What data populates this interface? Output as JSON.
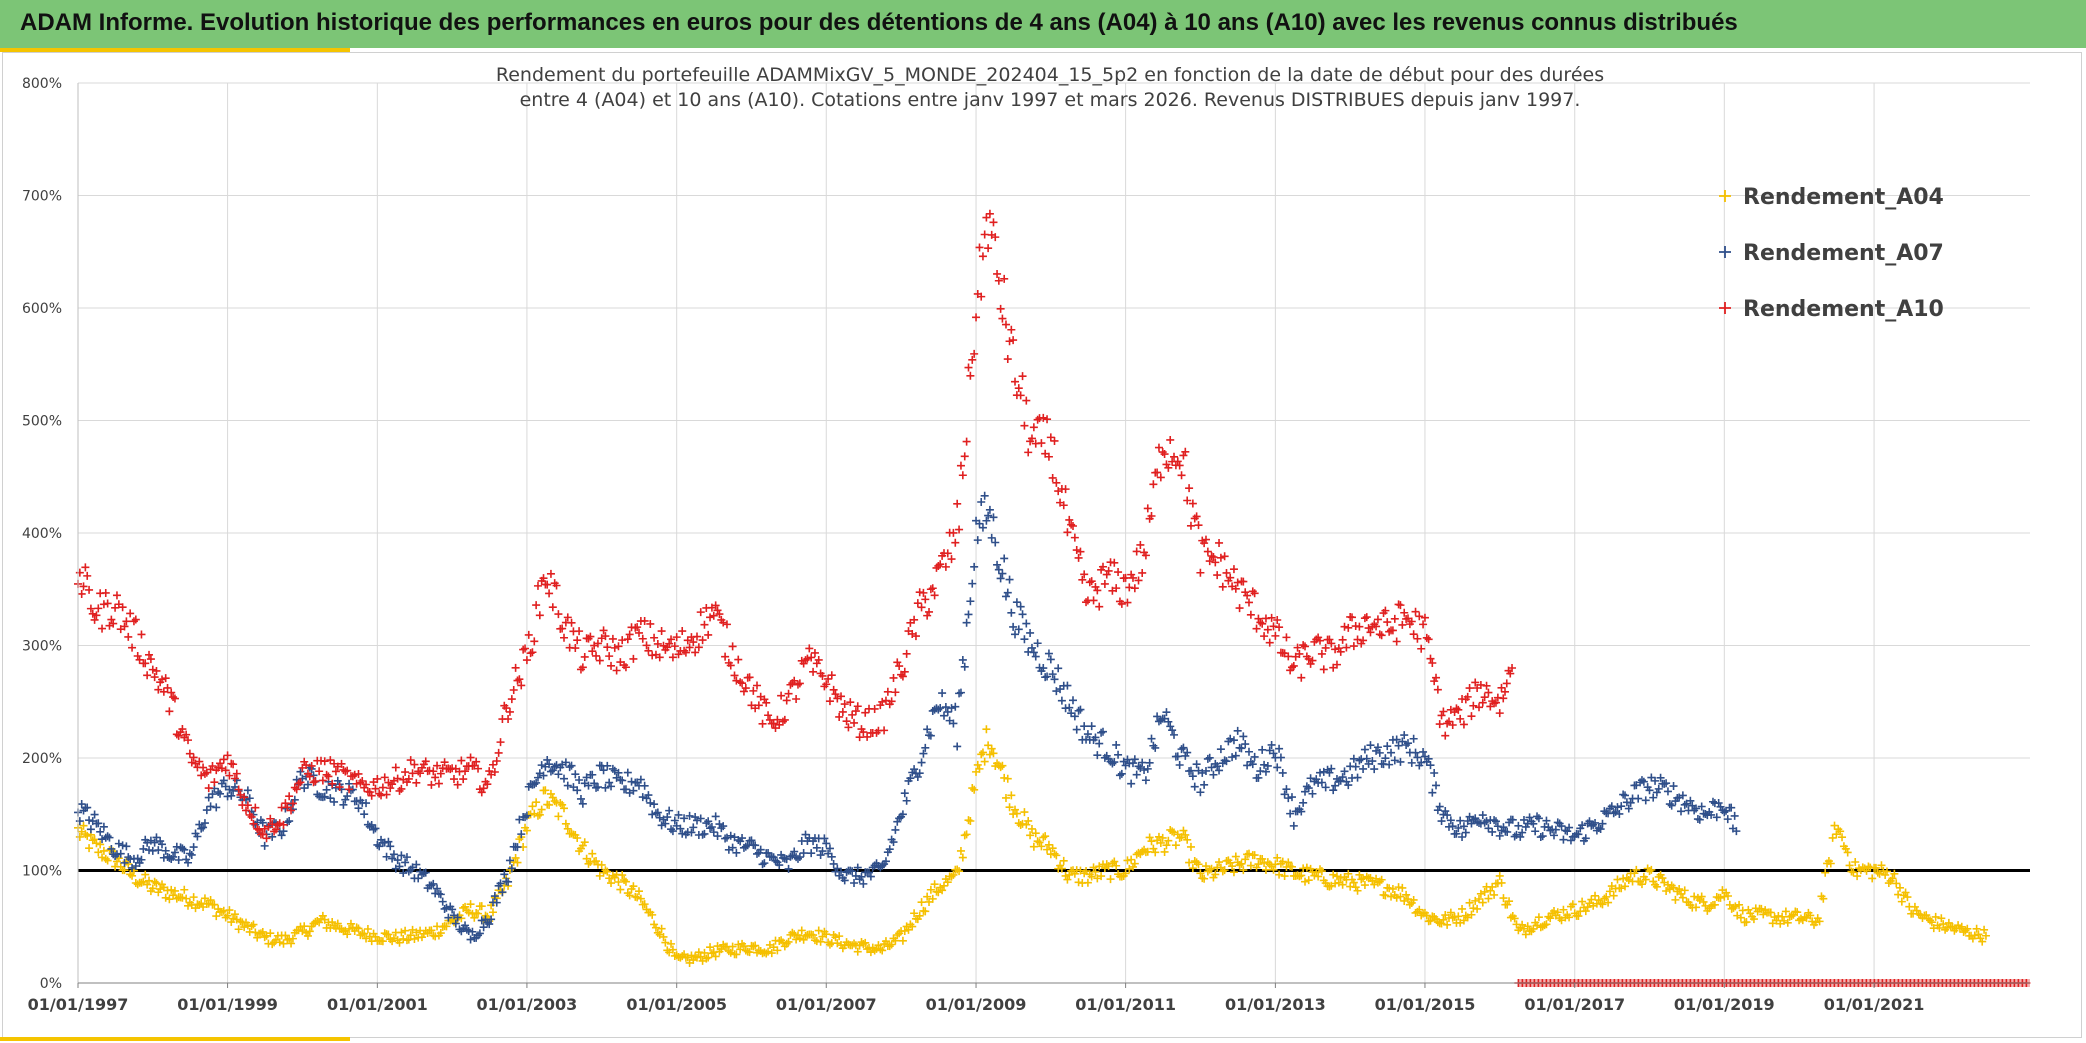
{
  "header": {
    "title": "ADAM Informe. Evolution historique des performances en euros pour des détentions de 4 ans (A04) à 10 ans (A10) avec les revenus connus distribués"
  },
  "chart_data": {
    "type": "scatter",
    "title": "",
    "subtitle_lines": [
      "Rendement du portefeuille ADAMMixGV_5_MONDE_202404_15_5p2  en fonction de la date de début pour des durées",
      "entre 4 (A04) et 10 ans (A10). Cotations entre janv 1997 et mars 2026. Revenus DISTRIBUES depuis janv 1997."
    ],
    "xlabel": "",
    "ylabel": "",
    "x_range": [
      "1997-01-01",
      "2023-02-01"
    ],
    "ylim": [
      0,
      800
    ],
    "y_ticks": [
      "0%",
      "100%",
      "200%",
      "300%",
      "400%",
      "500%",
      "600%",
      "700%",
      "800%"
    ],
    "x_ticks": [
      "01/01/1997",
      "01/01/1999",
      "01/01/2001",
      "01/01/2003",
      "01/01/2005",
      "01/01/2007",
      "01/01/2009",
      "01/01/2011",
      "01/01/2013",
      "01/01/2015",
      "01/01/2017",
      "01/01/2019",
      "01/01/2021"
    ],
    "reference_line": {
      "y": 100,
      "color": "#000000"
    },
    "grid": true,
    "legend_position": "top-right",
    "series": [
      {
        "name": "Rendement_A04",
        "color": "#f5c000",
        "marker": "+",
        "points": [
          [
            "1997-01-01",
            135
          ],
          [
            "1997-04-01",
            120
          ],
          [
            "1997-07-01",
            110
          ],
          [
            "1997-10-01",
            95
          ],
          [
            "1998-01-01",
            85
          ],
          [
            "1998-04-01",
            80
          ],
          [
            "1998-07-01",
            75
          ],
          [
            "1998-10-01",
            70
          ],
          [
            "1999-01-01",
            60
          ],
          [
            "1999-04-01",
            50
          ],
          [
            "1999-07-01",
            40
          ],
          [
            "1999-10-01",
            38
          ],
          [
            "2000-01-01",
            45
          ],
          [
            "2000-04-01",
            55
          ],
          [
            "2000-07-01",
            50
          ],
          [
            "2000-10-01",
            45
          ],
          [
            "2001-01-01",
            42
          ],
          [
            "2001-04-01",
            40
          ],
          [
            "2001-07-01",
            42
          ],
          [
            "2001-10-01",
            45
          ],
          [
            "2002-01-01",
            55
          ],
          [
            "2002-04-01",
            65
          ],
          [
            "2002-07-01",
            60
          ],
          [
            "2002-10-01",
            90
          ],
          [
            "2003-01-01",
            140
          ],
          [
            "2003-04-01",
            165
          ],
          [
            "2003-07-01",
            150
          ],
          [
            "2003-10-01",
            120
          ],
          [
            "2004-01-01",
            100
          ],
          [
            "2004-04-01",
            90
          ],
          [
            "2004-07-01",
            75
          ],
          [
            "2004-10-01",
            50
          ],
          [
            "2005-01-01",
            20
          ],
          [
            "2005-04-01",
            22
          ],
          [
            "2005-07-01",
            28
          ],
          [
            "2005-10-01",
            30
          ],
          [
            "2006-01-01",
            32
          ],
          [
            "2006-04-01",
            30
          ],
          [
            "2006-07-01",
            40
          ],
          [
            "2006-10-01",
            45
          ],
          [
            "2007-01-01",
            40
          ],
          [
            "2007-04-01",
            35
          ],
          [
            "2007-07-01",
            32
          ],
          [
            "2007-10-01",
            30
          ],
          [
            "2008-01-01",
            40
          ],
          [
            "2008-04-01",
            65
          ],
          [
            "2008-07-01",
            85
          ],
          [
            "2008-10-01",
            95
          ],
          [
            "2009-01-01",
            180
          ],
          [
            "2009-03-01",
            220
          ],
          [
            "2009-07-01",
            160
          ],
          [
            "2009-10-01",
            130
          ],
          [
            "2010-01-01",
            120
          ],
          [
            "2010-04-01",
            95
          ],
          [
            "2010-07-01",
            95
          ],
          [
            "2010-10-01",
            100
          ],
          [
            "2011-01-01",
            100
          ],
          [
            "2011-04-01",
            120
          ],
          [
            "2011-07-01",
            125
          ],
          [
            "2011-10-01",
            130
          ],
          [
            "2012-01-01",
            95
          ],
          [
            "2012-04-01",
            100
          ],
          [
            "2012-07-01",
            105
          ],
          [
            "2012-10-01",
            110
          ],
          [
            "2013-01-01",
            105
          ],
          [
            "2013-04-01",
            98
          ],
          [
            "2013-07-01",
            95
          ],
          [
            "2013-10-01",
            92
          ],
          [
            "2014-01-01",
            90
          ],
          [
            "2014-04-01",
            88
          ],
          [
            "2014-07-01",
            85
          ],
          [
            "2014-10-01",
            78
          ],
          [
            "2015-01-01",
            60
          ],
          [
            "2015-04-01",
            55
          ],
          [
            "2015-07-01",
            60
          ],
          [
            "2015-10-01",
            75
          ],
          [
            "2016-01-01",
            90
          ],
          [
            "2016-04-01",
            45
          ],
          [
            "2016-07-01",
            55
          ],
          [
            "2016-10-01",
            60
          ],
          [
            "2017-01-01",
            65
          ],
          [
            "2017-04-01",
            70
          ],
          [
            "2017-07-01",
            80
          ],
          [
            "2017-10-01",
            95
          ],
          [
            "2018-01-01",
            95
          ],
          [
            "2018-04-01",
            85
          ],
          [
            "2018-07-01",
            75
          ],
          [
            "2018-10-01",
            70
          ],
          [
            "2019-01-01",
            80
          ],
          [
            "2019-04-01",
            60
          ],
          [
            "2019-07-01",
            60
          ],
          [
            "2019-10-01",
            58
          ],
          [
            "2020-01-01",
            58
          ],
          [
            "2020-04-01",
            55
          ],
          [
            "2020-07-01",
            140
          ],
          [
            "2020-10-01",
            100
          ],
          [
            "2021-01-01",
            100
          ],
          [
            "2021-04-01",
            95
          ],
          [
            "2021-07-01",
            65
          ],
          [
            "2021-10-01",
            55
          ],
          [
            "2022-01-01",
            50
          ],
          [
            "2022-04-01",
            45
          ],
          [
            "2022-07-01",
            42
          ]
        ]
      },
      {
        "name": "Rendement_A07",
        "color": "#2f4f8a",
        "marker": "+",
        "points": [
          [
            "1997-01-01",
            155
          ],
          [
            "1997-04-01",
            140
          ],
          [
            "1997-07-01",
            120
          ],
          [
            "1997-10-01",
            110
          ],
          [
            "1998-01-01",
            125
          ],
          [
            "1998-04-01",
            115
          ],
          [
            "1998-07-01",
            110
          ],
          [
            "1998-10-01",
            160
          ],
          [
            "1999-01-01",
            175
          ],
          [
            "1999-04-01",
            165
          ],
          [
            "1999-07-01",
            130
          ],
          [
            "1999-10-01",
            140
          ],
          [
            "2000-01-01",
            185
          ],
          [
            "2000-04-01",
            175
          ],
          [
            "2000-07-01",
            170
          ],
          [
            "2000-10-01",
            165
          ],
          [
            "2001-01-01",
            130
          ],
          [
            "2001-04-01",
            110
          ],
          [
            "2001-07-01",
            100
          ],
          [
            "2001-10-01",
            85
          ],
          [
            "2002-01-01",
            60
          ],
          [
            "2002-04-01",
            40
          ],
          [
            "2002-07-01",
            60
          ],
          [
            "2002-10-01",
            100
          ],
          [
            "2003-01-01",
            160
          ],
          [
            "2003-04-01",
            200
          ],
          [
            "2003-07-01",
            190
          ],
          [
            "2003-10-01",
            170
          ],
          [
            "2004-01-01",
            185
          ],
          [
            "2004-04-01",
            175
          ],
          [
            "2004-07-01",
            180
          ],
          [
            "2004-10-01",
            150
          ],
          [
            "2005-01-01",
            140
          ],
          [
            "2005-04-01",
            140
          ],
          [
            "2005-07-01",
            140
          ],
          [
            "2005-10-01",
            125
          ],
          [
            "2006-01-01",
            120
          ],
          [
            "2006-04-01",
            110
          ],
          [
            "2006-07-01",
            105
          ],
          [
            "2006-10-01",
            125
          ],
          [
            "2007-01-01",
            120
          ],
          [
            "2007-04-01",
            95
          ],
          [
            "2007-07-01",
            95
          ],
          [
            "2007-10-01",
            100
          ],
          [
            "2008-01-01",
            150
          ],
          [
            "2008-04-01",
            200
          ],
          [
            "2008-07-01",
            250
          ],
          [
            "2008-10-01",
            230
          ],
          [
            "2009-01-01",
            400
          ],
          [
            "2009-03-01",
            420
          ],
          [
            "2009-07-01",
            330
          ],
          [
            "2009-10-01",
            300
          ],
          [
            "2010-01-01",
            280
          ],
          [
            "2010-04-01",
            250
          ],
          [
            "2010-07-01",
            220
          ],
          [
            "2010-10-01",
            210
          ],
          [
            "2011-01-01",
            190
          ],
          [
            "2011-04-01",
            185
          ],
          [
            "2011-07-01",
            240
          ],
          [
            "2011-10-01",
            200
          ],
          [
            "2012-01-01",
            180
          ],
          [
            "2012-04-01",
            200
          ],
          [
            "2012-07-01",
            215
          ],
          [
            "2012-10-01",
            190
          ],
          [
            "2013-01-01",
            210
          ],
          [
            "2013-04-01",
            150
          ],
          [
            "2013-07-01",
            175
          ],
          [
            "2013-10-01",
            180
          ],
          [
            "2014-01-01",
            185
          ],
          [
            "2014-04-01",
            200
          ],
          [
            "2014-07-01",
            205
          ],
          [
            "2014-10-01",
            210
          ],
          [
            "2015-01-01",
            200
          ],
          [
            "2015-04-01",
            150
          ],
          [
            "2015-07-01",
            135
          ],
          [
            "2015-10-01",
            150
          ],
          [
            "2016-01-01",
            140
          ],
          [
            "2016-04-01",
            135
          ],
          [
            "2016-07-01",
            140
          ],
          [
            "2016-10-01",
            135
          ],
          [
            "2017-01-01",
            130
          ],
          [
            "2017-04-01",
            140
          ],
          [
            "2017-07-01",
            150
          ],
          [
            "2017-10-01",
            165
          ],
          [
            "2018-01-01",
            175
          ],
          [
            "2018-04-01",
            170
          ],
          [
            "2018-07-01",
            160
          ],
          [
            "2018-10-01",
            150
          ],
          [
            "2019-01-01",
            160
          ],
          [
            "2019-03-01",
            135
          ]
        ]
      },
      {
        "name": "Rendement_A10",
        "color": "#e02020",
        "marker": "+",
        "points": [
          [
            "1997-01-01",
            365
          ],
          [
            "1997-04-01",
            330
          ],
          [
            "1997-07-01",
            335
          ],
          [
            "1997-10-01",
            310
          ],
          [
            "1998-01-01",
            280
          ],
          [
            "1998-04-01",
            250
          ],
          [
            "1998-07-01",
            200
          ],
          [
            "1998-10-01",
            180
          ],
          [
            "1999-01-01",
            200
          ],
          [
            "1999-04-01",
            160
          ],
          [
            "1999-07-01",
            135
          ],
          [
            "1999-10-01",
            150
          ],
          [
            "2000-01-01",
            185
          ],
          [
            "2000-04-01",
            190
          ],
          [
            "2000-07-01",
            185
          ],
          [
            "2000-10-01",
            175
          ],
          [
            "2001-01-01",
            175
          ],
          [
            "2001-04-01",
            180
          ],
          [
            "2001-07-01",
            190
          ],
          [
            "2001-10-01",
            185
          ],
          [
            "2002-01-01",
            185
          ],
          [
            "2002-04-01",
            190
          ],
          [
            "2002-07-01",
            175
          ],
          [
            "2002-10-01",
            250
          ],
          [
            "2003-01-01",
            290
          ],
          [
            "2003-04-01",
            365
          ],
          [
            "2003-07-01",
            320
          ],
          [
            "2003-10-01",
            290
          ],
          [
            "2004-01-01",
            300
          ],
          [
            "2004-04-01",
            290
          ],
          [
            "2004-07-01",
            310
          ],
          [
            "2004-10-01",
            300
          ],
          [
            "2005-01-01",
            295
          ],
          [
            "2005-04-01",
            310
          ],
          [
            "2005-07-01",
            330
          ],
          [
            "2005-10-01",
            290
          ],
          [
            "2006-01-01",
            260
          ],
          [
            "2006-04-01",
            230
          ],
          [
            "2006-07-01",
            250
          ],
          [
            "2006-10-01",
            285
          ],
          [
            "2007-01-01",
            270
          ],
          [
            "2007-04-01",
            240
          ],
          [
            "2007-07-01",
            230
          ],
          [
            "2007-10-01",
            235
          ],
          [
            "2008-01-01",
            280
          ],
          [
            "2008-04-01",
            330
          ],
          [
            "2008-07-01",
            360
          ],
          [
            "2008-10-01",
            400
          ],
          [
            "2009-01-01",
            600
          ],
          [
            "2009-03-01",
            680
          ],
          [
            "2009-07-01",
            550
          ],
          [
            "2009-10-01",
            480
          ],
          [
            "2010-01-01",
            480
          ],
          [
            "2010-04-01",
            400
          ],
          [
            "2010-07-01",
            340
          ],
          [
            "2010-10-01",
            360
          ],
          [
            "2011-01-01",
            350
          ],
          [
            "2011-04-01",
            380
          ],
          [
            "2011-07-01",
            480
          ],
          [
            "2011-10-01",
            470
          ],
          [
            "2012-01-01",
            380
          ],
          [
            "2012-04-01",
            375
          ],
          [
            "2012-07-01",
            350
          ],
          [
            "2012-10-01",
            330
          ],
          [
            "2013-01-01",
            310
          ],
          [
            "2013-04-01",
            280
          ],
          [
            "2013-07-01",
            295
          ],
          [
            "2013-10-01",
            290
          ],
          [
            "2014-01-01",
            310
          ],
          [
            "2014-04-01",
            320
          ],
          [
            "2014-07-01",
            315
          ],
          [
            "2014-10-01",
            325
          ],
          [
            "2015-01-01",
            310
          ],
          [
            "2015-04-01",
            230
          ],
          [
            "2015-07-01",
            240
          ],
          [
            "2015-10-01",
            260
          ],
          [
            "2016-01-01",
            250
          ],
          [
            "2016-03-01",
            280
          ]
        ]
      }
    ],
    "a10_zero_band": {
      "from": "2016-04-01",
      "to": "2023-02-01",
      "y": 0
    }
  }
}
